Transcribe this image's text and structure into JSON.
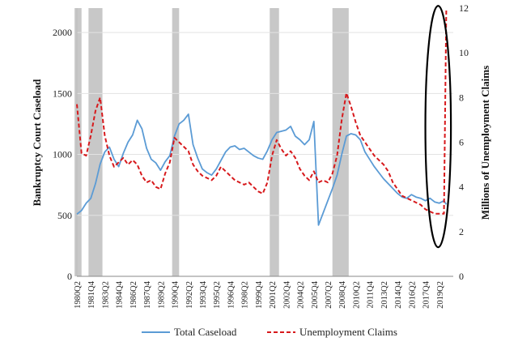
{
  "chart_data": {
    "type": "line",
    "title": "",
    "ylabel_left": "Bankruptcy Court Caseload",
    "ylabel_right": "Millions of Unemployment Claims",
    "ylim_left": [
      0,
      2200
    ],
    "ylim_right": [
      0,
      12
    ],
    "yticks_left": [
      "0",
      "500",
      "1000",
      "1500",
      "2000"
    ],
    "yticks_right": [
      "0",
      "2",
      "4",
      "6",
      "8",
      "10",
      "12"
    ],
    "xticks": [
      "1980Q2",
      "1981Q4",
      "1983Q2",
      "1984Q4",
      "1986Q2",
      "1987Q4",
      "1989Q2",
      "1990Q4",
      "1992Q2",
      "1993Q4",
      "1995Q2",
      "1996Q4",
      "1998Q2",
      "1999Q4",
      "2001Q2",
      "2002Q4",
      "2004Q2",
      "2005Q4",
      "2007Q2",
      "2008Q4",
      "2010Q2",
      "2011Q4",
      "2013Q2",
      "2014Q4",
      "2016Q2",
      "2017Q4",
      "2019Q2"
    ],
    "recessions": [
      [
        "1980Q1",
        "1980Q3"
      ],
      [
        "1981Q3",
        "1982Q4"
      ],
      [
        "1990Q3",
        "1991Q1"
      ],
      [
        "2001Q1",
        "2001Q4"
      ],
      [
        "2007Q4",
        "2009Q2"
      ]
    ],
    "series": [
      {
        "name": "Total Caseload",
        "color": "#5b9bd5",
        "style": "solid",
        "axis": "left",
        "points": [
          [
            "1980Q2",
            510
          ],
          [
            "1980Q4",
            540
          ],
          [
            "1981Q2",
            600
          ],
          [
            "1981Q4",
            640
          ],
          [
            "1982Q2",
            760
          ],
          [
            "1982Q4",
            920
          ],
          [
            "1983Q2",
            1020
          ],
          [
            "1983Q4",
            1060
          ],
          [
            "1984Q2",
            960
          ],
          [
            "1984Q4",
            900
          ],
          [
            "1985Q2",
            1010
          ],
          [
            "1985Q4",
            1100
          ],
          [
            "1986Q2",
            1160
          ],
          [
            "1986Q4",
            1280
          ],
          [
            "1987Q2",
            1210
          ],
          [
            "1987Q4",
            1050
          ],
          [
            "1988Q2",
            960
          ],
          [
            "1988Q4",
            930
          ],
          [
            "1989Q2",
            870
          ],
          [
            "1989Q4",
            940
          ],
          [
            "1990Q2",
            990
          ],
          [
            "1990Q4",
            1150
          ],
          [
            "1991Q2",
            1250
          ],
          [
            "1991Q4",
            1280
          ],
          [
            "1992Q2",
            1330
          ],
          [
            "1992Q4",
            1080
          ],
          [
            "1993Q2",
            970
          ],
          [
            "1993Q4",
            880
          ],
          [
            "1994Q2",
            850
          ],
          [
            "1994Q4",
            830
          ],
          [
            "1995Q2",
            880
          ],
          [
            "1995Q4",
            950
          ],
          [
            "1996Q2",
            1020
          ],
          [
            "1996Q4",
            1060
          ],
          [
            "1997Q2",
            1070
          ],
          [
            "1997Q4",
            1040
          ],
          [
            "1998Q2",
            1050
          ],
          [
            "1998Q4",
            1020
          ],
          [
            "1999Q2",
            990
          ],
          [
            "1999Q4",
            970
          ],
          [
            "2000Q2",
            960
          ],
          [
            "2000Q4",
            1030
          ],
          [
            "2001Q2",
            1120
          ],
          [
            "2001Q4",
            1180
          ],
          [
            "2002Q2",
            1190
          ],
          [
            "2002Q4",
            1200
          ],
          [
            "2003Q2",
            1230
          ],
          [
            "2003Q4",
            1150
          ],
          [
            "2004Q2",
            1120
          ],
          [
            "2004Q4",
            1080
          ],
          [
            "2005Q2",
            1120
          ],
          [
            "2005Q4",
            1270
          ],
          [
            "2006Q2",
            420
          ],
          [
            "2006Q4",
            520
          ],
          [
            "2007Q2",
            620
          ],
          [
            "2007Q4",
            720
          ],
          [
            "2008Q2",
            830
          ],
          [
            "2008Q4",
            1000
          ],
          [
            "2009Q2",
            1150
          ],
          [
            "2009Q4",
            1170
          ],
          [
            "2010Q2",
            1160
          ],
          [
            "2010Q4",
            1120
          ],
          [
            "2011Q2",
            1020
          ],
          [
            "2011Q4",
            960
          ],
          [
            "2012Q2",
            900
          ],
          [
            "2012Q4",
            850
          ],
          [
            "2013Q2",
            800
          ],
          [
            "2013Q4",
            760
          ],
          [
            "2014Q2",
            720
          ],
          [
            "2014Q4",
            680
          ],
          [
            "2015Q2",
            650
          ],
          [
            "2015Q4",
            640
          ],
          [
            "2016Q2",
            670
          ],
          [
            "2016Q4",
            650
          ],
          [
            "2017Q2",
            640
          ],
          [
            "2017Q4",
            620
          ],
          [
            "2018Q2",
            640
          ],
          [
            "2018Q4",
            610
          ],
          [
            "2019Q2",
            600
          ],
          [
            "2019Q4",
            620
          ],
          [
            "2020Q1",
            590
          ]
        ]
      },
      {
        "name": "Unemployment Claims",
        "color": "#d7191c",
        "style": "dashed",
        "axis": "right",
        "points": [
          [
            "1980Q2",
            7.7
          ],
          [
            "1980Q4",
            5.5
          ],
          [
            "1981Q2",
            5.4
          ],
          [
            "1981Q4",
            6.3
          ],
          [
            "1982Q2",
            7.4
          ],
          [
            "1982Q4",
            8.0
          ],
          [
            "1983Q2",
            6.3
          ],
          [
            "1983Q4",
            5.4
          ],
          [
            "1984Q2",
            4.9
          ],
          [
            "1984Q4",
            5.1
          ],
          [
            "1985Q2",
            5.3
          ],
          [
            "1985Q4",
            5.0
          ],
          [
            "1986Q2",
            5.2
          ],
          [
            "1986Q4",
            5.0
          ],
          [
            "1987Q2",
            4.5
          ],
          [
            "1987Q4",
            4.2
          ],
          [
            "1988Q2",
            4.3
          ],
          [
            "1988Q4",
            4.0
          ],
          [
            "1989Q2",
            3.9
          ],
          [
            "1989Q4",
            4.6
          ],
          [
            "1990Q2",
            5.1
          ],
          [
            "1990Q4",
            6.2
          ],
          [
            "1991Q2",
            6.0
          ],
          [
            "1991Q4",
            5.8
          ],
          [
            "1992Q2",
            5.6
          ],
          [
            "1992Q4",
            5.0
          ],
          [
            "1993Q2",
            4.7
          ],
          [
            "1993Q4",
            4.5
          ],
          [
            "1994Q2",
            4.4
          ],
          [
            "1994Q4",
            4.3
          ],
          [
            "1995Q2",
            4.5
          ],
          [
            "1995Q4",
            4.9
          ],
          [
            "1996Q2",
            4.7
          ],
          [
            "1996Q4",
            4.5
          ],
          [
            "1997Q2",
            4.3
          ],
          [
            "1997Q4",
            4.2
          ],
          [
            "1998Q2",
            4.1
          ],
          [
            "1998Q4",
            4.2
          ],
          [
            "1999Q2",
            4.0
          ],
          [
            "1999Q4",
            3.8
          ],
          [
            "2000Q2",
            3.7
          ],
          [
            "2000Q4",
            4.2
          ],
          [
            "2001Q2",
            5.4
          ],
          [
            "2001Q4",
            6.1
          ],
          [
            "2002Q2",
            5.7
          ],
          [
            "2002Q4",
            5.4
          ],
          [
            "2003Q2",
            5.6
          ],
          [
            "2003Q4",
            5.3
          ],
          [
            "2004Q2",
            4.8
          ],
          [
            "2004Q4",
            4.5
          ],
          [
            "2005Q2",
            4.3
          ],
          [
            "2005Q4",
            4.7
          ],
          [
            "2006Q2",
            4.2
          ],
          [
            "2006Q4",
            4.3
          ],
          [
            "2007Q2",
            4.2
          ],
          [
            "2007Q4",
            4.6
          ],
          [
            "2008Q2",
            5.4
          ],
          [
            "2008Q4",
            7.0
          ],
          [
            "2009Q2",
            8.2
          ],
          [
            "2009Q4",
            7.6
          ],
          [
            "2010Q2",
            6.9
          ],
          [
            "2010Q4",
            6.3
          ],
          [
            "2011Q2",
            6.0
          ],
          [
            "2011Q4",
            5.7
          ],
          [
            "2012Q2",
            5.4
          ],
          [
            "2012Q4",
            5.2
          ],
          [
            "2013Q2",
            5.0
          ],
          [
            "2013Q4",
            4.7
          ],
          [
            "2014Q2",
            4.2
          ],
          [
            "2014Q4",
            3.9
          ],
          [
            "2015Q2",
            3.6
          ],
          [
            "2015Q4",
            3.5
          ],
          [
            "2016Q2",
            3.4
          ],
          [
            "2016Q4",
            3.3
          ],
          [
            "2017Q2",
            3.2
          ],
          [
            "2017Q4",
            3.0
          ],
          [
            "2018Q2",
            2.9
          ],
          [
            "2018Q4",
            2.8
          ],
          [
            "2019Q2",
            2.8
          ],
          [
            "2019Q4",
            2.8
          ],
          [
            "2020Q1",
            11.9
          ]
        ]
      }
    ],
    "legend": [
      "Total Caseload",
      "Unemployment Claims"
    ],
    "legend_position": "bottom",
    "grid": true,
    "annotation": {
      "shape": "ellipse",
      "x_start": "2017Q4",
      "x_end": "2020Q3",
      "y_top": 12.1,
      "y_bottom": 1.3,
      "color": "#000000"
    }
  }
}
